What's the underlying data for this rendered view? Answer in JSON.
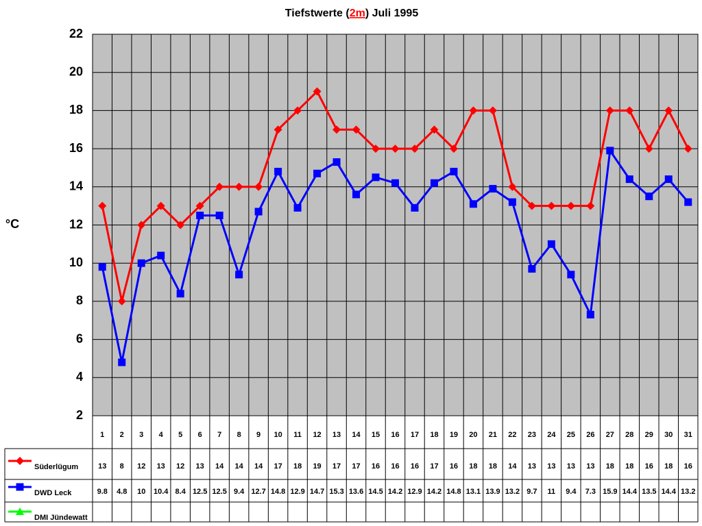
{
  "chart_data": {
    "type": "line",
    "title_parts": [
      "Tiefstwerte (",
      "2m",
      ") Juli 1995"
    ],
    "y_label": "°C",
    "categories": [
      "1",
      "2",
      "3",
      "4",
      "5",
      "6",
      "7",
      "8",
      "9",
      "10",
      "11",
      "12",
      "13",
      "14",
      "15",
      "16",
      "17",
      "18",
      "19",
      "20",
      "21",
      "22",
      "23",
      "24",
      "25",
      "26",
      "27",
      "28",
      "29",
      "30",
      "31"
    ],
    "series": [
      {
        "name": "Süderlügum",
        "color": "#ff0000",
        "marker": "diamond",
        "values": [
          13,
          8,
          12,
          13,
          12,
          13,
          14,
          14,
          14,
          17,
          18,
          19,
          17,
          17,
          16,
          16,
          16,
          17,
          16,
          18,
          18,
          14,
          13,
          13,
          13,
          13,
          18,
          18,
          16,
          18,
          16
        ]
      },
      {
        "name": "DWD Leck",
        "color": "#0000ff",
        "marker": "square",
        "values": [
          9.8,
          4.8,
          10,
          10.4,
          8.4,
          12.5,
          12.5,
          9.4,
          12.7,
          14.8,
          12.9,
          14.7,
          15.3,
          13.6,
          14.5,
          14.2,
          12.9,
          14.2,
          14.8,
          13.1,
          13.9,
          13.2,
          9.7,
          11,
          9.4,
          7.3,
          15.9,
          14.4,
          13.5,
          14.4,
          13.2
        ]
      },
      {
        "name": "DMI Jündewatt",
        "color": "#00ff00",
        "marker": "triangle",
        "values": [
          null,
          null,
          null,
          null,
          null,
          null,
          null,
          null,
          null,
          null,
          null,
          null,
          null,
          null,
          null,
          null,
          null,
          null,
          null,
          null,
          null,
          null,
          null,
          null,
          null,
          null,
          null,
          null,
          null,
          null,
          null
        ]
      }
    ],
    "ylim": [
      2,
      22
    ],
    "yticks": [
      2,
      4,
      6,
      8,
      10,
      12,
      14,
      16,
      18,
      20,
      22
    ],
    "grid": true
  }
}
